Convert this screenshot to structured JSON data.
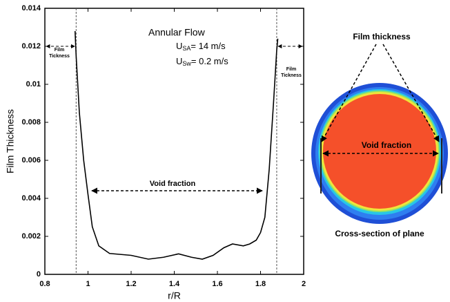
{
  "chart_data": {
    "type": "line",
    "x_label": "r/R",
    "y_label": "Film Thickness",
    "xlim": [
      0.8,
      2
    ],
    "ylim": [
      0,
      0.014
    ],
    "xticks": [
      0.8,
      1,
      1.2,
      1.4,
      1.6,
      1.8,
      2
    ],
    "yticks": [
      0,
      0.002,
      0.004,
      0.006,
      0.008,
      0.01,
      0.012,
      0.014
    ],
    "boundaries": [
      0.945,
      1.875
    ],
    "x": [
      0.94,
      0.945,
      0.96,
      0.98,
      1.0,
      1.02,
      1.05,
      1.1,
      1.15,
      1.2,
      1.28,
      1.35,
      1.42,
      1.48,
      1.53,
      1.58,
      1.63,
      1.67,
      1.72,
      1.75,
      1.78,
      1.8,
      1.82,
      1.84,
      1.86,
      1.875,
      1.88
    ],
    "series": [
      {
        "name": "Film thickness",
        "color": "#000000",
        "values": [
          0.0128,
          0.0115,
          0.0085,
          0.006,
          0.0042,
          0.0025,
          0.0015,
          0.0011,
          0.00105,
          0.001,
          0.0008,
          0.0009,
          0.00108,
          0.0009,
          0.0008,
          0.001,
          0.0014,
          0.0016,
          0.0015,
          0.0016,
          0.0018,
          0.0022,
          0.003,
          0.0055,
          0.009,
          0.0118,
          0.0124
        ]
      }
    ],
    "annotations": {
      "title": "Annular Flow",
      "usa": {
        "symbol": "U",
        "subscript": "SA",
        "text": "= 14 m/s"
      },
      "usw": {
        "symbol": "U",
        "subscript": "Sw",
        "text": "= 0.2 m/s"
      },
      "film_left": [
        "Film",
        "Tickness"
      ],
      "film_right": [
        "Film",
        "Tickness"
      ],
      "void": "Void fraction"
    }
  },
  "cross_section": {
    "film_label": "Film thickness",
    "void_label": "Void fraction",
    "caption": "Cross-section of plane"
  }
}
